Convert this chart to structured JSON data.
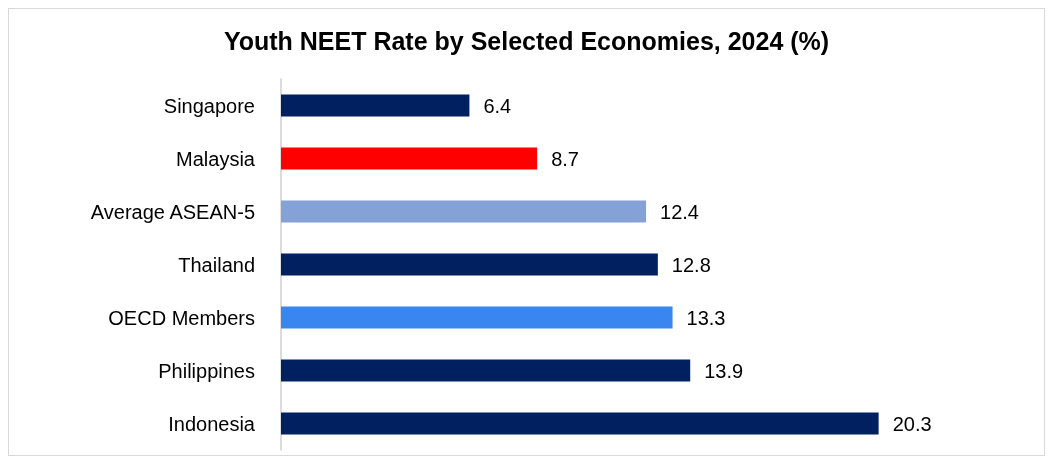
{
  "chart_data": {
    "type": "bar",
    "orientation": "horizontal",
    "title": "Youth NEET Rate by Selected Economies, 2024 (%)",
    "categories": [
      "Singapore",
      "Malaysia",
      "Average ASEAN-5",
      "Thailand",
      "OECD Members",
      "Philippines",
      "Indonesia"
    ],
    "values": [
      6.4,
      8.7,
      12.4,
      12.8,
      13.3,
      13.9,
      20.3
    ],
    "colors": [
      "#002060",
      "#ff0000",
      "#84a2d6",
      "#002060",
      "#3a86f0",
      "#002060",
      "#002060"
    ],
    "data_labels": true
  }
}
